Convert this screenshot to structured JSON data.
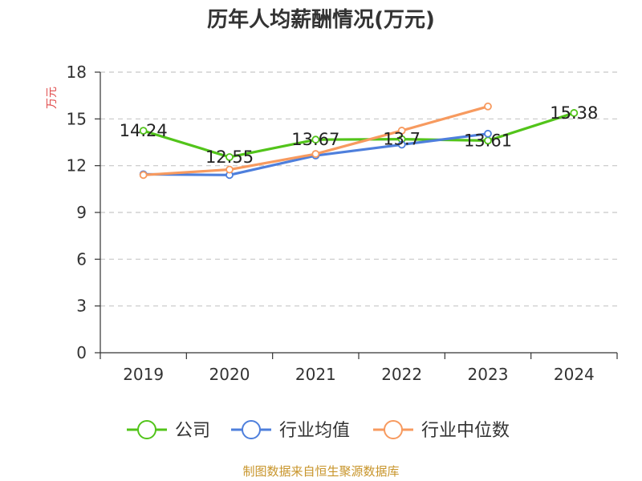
{
  "chart_data": {
    "type": "line",
    "title": "历年人均薪酬情况(万元)",
    "ylabel": "万元",
    "xlabel": "",
    "categories": [
      "2019",
      "2020",
      "2021",
      "2022",
      "2023",
      "2024"
    ],
    "ylim": [
      0,
      18
    ],
    "yticks": [
      "0",
      "3",
      "6",
      "9",
      "12",
      "15",
      "18"
    ],
    "grid": true,
    "legend_position": "bottom",
    "series": [
      {
        "name": "公司",
        "color": "#52c41a",
        "values": [
          14.24,
          12.55,
          13.67,
          13.7,
          13.61,
          15.38
        ],
        "labels": [
          "14.24",
          "12.55",
          "13.67",
          "13.7",
          "13.61",
          "15.38"
        ]
      },
      {
        "name": "行业均值",
        "color": "#4e7fdc",
        "values": [
          11.45,
          11.4,
          12.65,
          13.35,
          14.05,
          null
        ]
      },
      {
        "name": "行业中位数",
        "color": "#f79a5f",
        "values": [
          11.4,
          11.75,
          12.75,
          14.25,
          15.8,
          null
        ]
      }
    ],
    "source": "制图数据来自恒生聚源数据库",
    "source_color": "#c8952b",
    "ylabel_color": "#e04b4b"
  }
}
